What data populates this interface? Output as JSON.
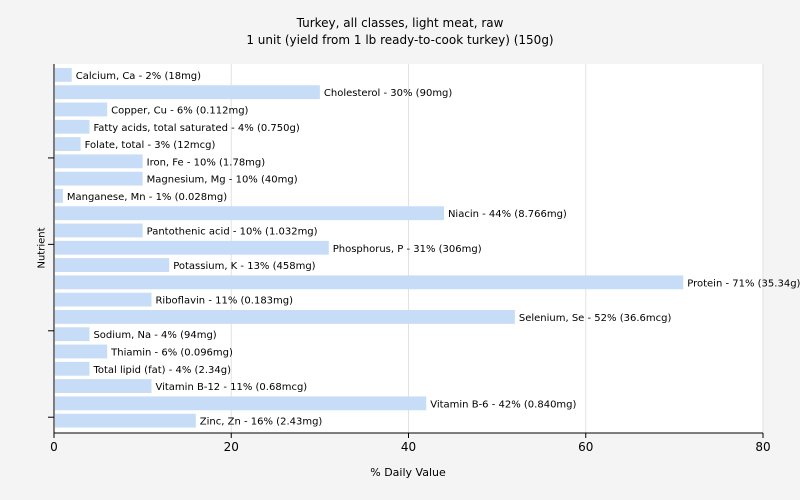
{
  "chart_data": {
    "type": "bar",
    "orientation": "horizontal",
    "title": "Turkey, all classes, light meat, raw",
    "subtitle": "1 unit (yield from 1 lb ready-to-cook turkey) (150g)",
    "xlabel": "% Daily Value",
    "ylabel": "Nutrient",
    "xlim": [
      0,
      80
    ],
    "xticks": [
      0,
      20,
      40,
      60,
      80
    ],
    "grid": "vertical",
    "bar_color": "#c6dcf7",
    "categories": [
      "Calcium, Ca - 2% (18mg)",
      "Cholesterol - 30% (90mg)",
      "Copper, Cu - 6% (0.112mg)",
      "Fatty acids, total saturated - 4% (0.750g)",
      "Folate, total - 3% (12mcg)",
      "Iron, Fe - 10% (1.78mg)",
      "Magnesium, Mg - 10% (40mg)",
      "Manganese, Mn - 1% (0.028mg)",
      "Niacin - 44% (8.766mg)",
      "Pantothenic acid - 10% (1.032mg)",
      "Phosphorus, P - 31% (306mg)",
      "Potassium, K - 13% (458mg)",
      "Protein - 71% (35.34g)",
      "Riboflavin - 11% (0.183mg)",
      "Selenium, Se - 52% (36.6mcg)",
      "Sodium, Na - 4% (94mg)",
      "Thiamin - 6% (0.096mg)",
      "Total lipid (fat) - 4% (2.34g)",
      "Vitamin B-12 - 11% (0.68mcg)",
      "Vitamin B-6 - 42% (0.840mg)",
      "Zinc, Zn - 16% (2.43mg)"
    ],
    "values": [
      2,
      30,
      6,
      4,
      3,
      10,
      10,
      1,
      44,
      10,
      31,
      13,
      71,
      11,
      52,
      4,
      6,
      4,
      11,
      42,
      16
    ]
  }
}
